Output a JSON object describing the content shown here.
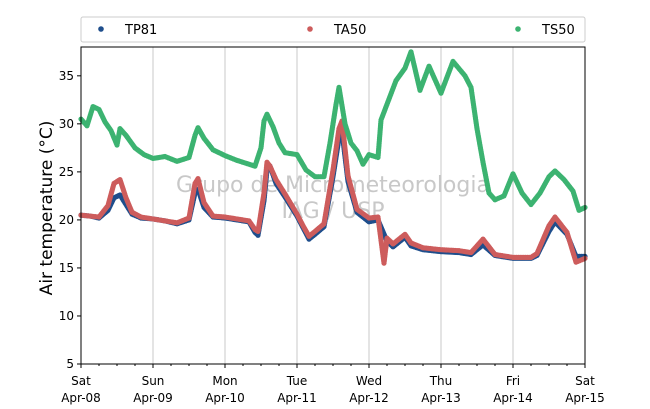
{
  "chart_data": {
    "type": "scatter",
    "ylabel": "Air temperature (°C)",
    "xlim": [
      "2017-04-08T00:00",
      "2017-04-15T00:00"
    ],
    "ylim": [
      5,
      38
    ],
    "yticks": [
      5,
      10,
      15,
      20,
      25,
      30,
      35
    ],
    "xticks": [
      {
        "day": "Sat",
        "date": "Apr-08"
      },
      {
        "day": "Sun",
        "date": "Apr-09"
      },
      {
        "day": "Mon",
        "date": "Apr-10"
      },
      {
        "day": "Tue",
        "date": "Apr-11"
      },
      {
        "day": "Wed",
        "date": "Apr-12"
      },
      {
        "day": "Thu",
        "date": "Apr-13"
      },
      {
        "day": "Fri",
        "date": "Apr-14"
      },
      {
        "day": "Sat",
        "date": "Apr-15"
      }
    ],
    "grid": "vertical",
    "legend": "top",
    "watermark": [
      "Grupo de Micrometeorologia",
      "IAG / USP"
    ],
    "series": [
      {
        "name": "TP81",
        "color": "#1f4e8c",
        "points": [
          [
            "2017-04-08T00:00",
            20.5
          ],
          [
            "2017-04-08T03:00",
            20.4
          ],
          [
            "2017-04-08T06:00",
            20.2
          ],
          [
            "2017-04-08T09:00",
            21.0
          ],
          [
            "2017-04-08T11:00",
            22.3
          ],
          [
            "2017-04-08T13:00",
            22.6
          ],
          [
            "2017-04-08T15:00",
            21.6
          ],
          [
            "2017-04-08T17:00",
            20.6
          ],
          [
            "2017-04-08T20:00",
            20.2
          ],
          [
            "2017-04-09T00:00",
            20.1
          ],
          [
            "2017-04-09T04:00",
            19.9
          ],
          [
            "2017-04-09T08:00",
            19.6
          ],
          [
            "2017-04-09T12:00",
            20.0
          ],
          [
            "2017-04-09T14:00",
            22.8
          ],
          [
            "2017-04-09T15:00",
            23.2
          ],
          [
            "2017-04-09T17:00",
            21.3
          ],
          [
            "2017-04-09T20:00",
            20.3
          ],
          [
            "2017-04-10T00:00",
            20.2
          ],
          [
            "2017-04-10T04:00",
            20.0
          ],
          [
            "2017-04-10T08:00",
            19.8
          ],
          [
            "2017-04-10T10:00",
            18.7
          ],
          [
            "2017-04-10T11:00",
            18.4
          ],
          [
            "2017-04-10T13:00",
            22.0
          ],
          [
            "2017-04-10T14:00",
            25.2
          ],
          [
            "2017-04-10T15:00",
            25.6
          ],
          [
            "2017-04-10T17:00",
            23.8
          ],
          [
            "2017-04-10T20:00",
            22.4
          ],
          [
            "2017-04-11T00:00",
            20.4
          ],
          [
            "2017-04-11T02:00",
            19.2
          ],
          [
            "2017-04-11T04:00",
            18.0
          ],
          [
            "2017-04-11T06:00",
            18.5
          ],
          [
            "2017-04-11T09:00",
            19.3
          ],
          [
            "2017-04-11T12:00",
            24.5
          ],
          [
            "2017-04-11T14:00",
            28.5
          ],
          [
            "2017-04-11T15:00",
            29.2
          ],
          [
            "2017-04-11T17:00",
            24.0
          ],
          [
            "2017-04-11T20:00",
            20.8
          ],
          [
            "2017-04-12T00:00",
            19.8
          ],
          [
            "2017-04-12T03:00",
            20.0
          ],
          [
            "2017-04-12T06:00",
            17.8
          ],
          [
            "2017-04-12T08:00",
            17.2
          ],
          [
            "2017-04-12T12:00",
            18.2
          ],
          [
            "2017-04-12T14:00",
            17.3
          ],
          [
            "2017-04-12T18:00",
            16.9
          ],
          [
            "2017-04-13T00:00",
            16.7
          ],
          [
            "2017-04-13T06:00",
            16.6
          ],
          [
            "2017-04-13T10:00",
            16.4
          ],
          [
            "2017-04-13T14:00",
            17.4
          ],
          [
            "2017-04-13T18:00",
            16.3
          ],
          [
            "2017-04-14T00:00",
            16.0
          ],
          [
            "2017-04-14T06:00",
            16.0
          ],
          [
            "2017-04-14T08:00",
            16.3
          ],
          [
            "2017-04-14T12:00",
            18.8
          ],
          [
            "2017-04-14T14:00",
            19.8
          ],
          [
            "2017-04-14T18:00",
            18.5
          ],
          [
            "2017-04-14T21:00",
            16.2
          ],
          [
            "2017-04-15T00:00",
            16.2
          ]
        ]
      },
      {
        "name": "TA50",
        "color": "#cd5c5c",
        "points": [
          [
            "2017-04-08T00:00",
            20.5
          ],
          [
            "2017-04-08T03:00",
            20.4
          ],
          [
            "2017-04-08T06:00",
            20.3
          ],
          [
            "2017-04-08T09:00",
            21.5
          ],
          [
            "2017-04-08T11:00",
            23.8
          ],
          [
            "2017-04-08T13:00",
            24.2
          ],
          [
            "2017-04-08T15:00",
            22.3
          ],
          [
            "2017-04-08T17:00",
            20.8
          ],
          [
            "2017-04-08T20:00",
            20.3
          ],
          [
            "2017-04-09T00:00",
            20.1
          ],
          [
            "2017-04-09T04:00",
            19.9
          ],
          [
            "2017-04-09T08:00",
            19.7
          ],
          [
            "2017-04-09T12:00",
            20.2
          ],
          [
            "2017-04-09T14:00",
            23.8
          ],
          [
            "2017-04-09T15:00",
            24.3
          ],
          [
            "2017-04-09T17:00",
            21.8
          ],
          [
            "2017-04-09T20:00",
            20.4
          ],
          [
            "2017-04-10T00:00",
            20.3
          ],
          [
            "2017-04-10T04:00",
            20.1
          ],
          [
            "2017-04-10T08:00",
            19.9
          ],
          [
            "2017-04-10T10:00",
            19.0
          ],
          [
            "2017-04-10T11:00",
            18.8
          ],
          [
            "2017-04-10T13:00",
            22.8
          ],
          [
            "2017-04-10T14:00",
            26.0
          ],
          [
            "2017-04-10T15:00",
            25.6
          ],
          [
            "2017-04-10T17:00",
            24.2
          ],
          [
            "2017-04-10T20:00",
            22.7
          ],
          [
            "2017-04-11T00:00",
            20.6
          ],
          [
            "2017-04-11T02:00",
            19.4
          ],
          [
            "2017-04-11T04:00",
            18.3
          ],
          [
            "2017-04-11T06:00",
            18.8
          ],
          [
            "2017-04-11T09:00",
            19.6
          ],
          [
            "2017-04-11T12:00",
            25.2
          ],
          [
            "2017-04-11T14:00",
            29.5
          ],
          [
            "2017-04-11T15:00",
            30.3
          ],
          [
            "2017-04-11T17:00",
            24.6
          ],
          [
            "2017-04-11T20:00",
            21.1
          ],
          [
            "2017-04-12T00:00",
            20.2
          ],
          [
            "2017-04-12T03:00",
            20.3
          ],
          [
            "2017-04-12T05:00",
            15.5
          ],
          [
            "2017-04-12T06:00",
            18.1
          ],
          [
            "2017-04-12T08:00",
            17.5
          ],
          [
            "2017-04-12T12:00",
            18.5
          ],
          [
            "2017-04-12T14:00",
            17.6
          ],
          [
            "2017-04-12T18:00",
            17.1
          ],
          [
            "2017-04-13T00:00",
            16.9
          ],
          [
            "2017-04-13T06:00",
            16.8
          ],
          [
            "2017-04-13T10:00",
            16.6
          ],
          [
            "2017-04-13T14:00",
            18.0
          ],
          [
            "2017-04-13T18:00",
            16.4
          ],
          [
            "2017-04-14T00:00",
            16.1
          ],
          [
            "2017-04-14T06:00",
            16.1
          ],
          [
            "2017-04-14T08:00",
            16.5
          ],
          [
            "2017-04-14T12:00",
            19.4
          ],
          [
            "2017-04-14T14:00",
            20.3
          ],
          [
            "2017-04-14T18:00",
            18.7
          ],
          [
            "2017-04-14T21:00",
            15.6
          ],
          [
            "2017-04-15T00:00",
            16.0
          ]
        ]
      },
      {
        "name": "TS50",
        "color": "#3cb371",
        "points": [
          [
            "2017-04-08T00:00",
            30.5
          ],
          [
            "2017-04-08T02:00",
            29.8
          ],
          [
            "2017-04-08T04:00",
            31.8
          ],
          [
            "2017-04-08T06:00",
            31.5
          ],
          [
            "2017-04-08T08:00",
            30.2
          ],
          [
            "2017-04-08T10:00",
            29.3
          ],
          [
            "2017-04-08T12:00",
            27.8
          ],
          [
            "2017-04-08T13:00",
            29.5
          ],
          [
            "2017-04-08T15:00",
            28.8
          ],
          [
            "2017-04-08T18:00",
            27.5
          ],
          [
            "2017-04-08T21:00",
            26.8
          ],
          [
            "2017-04-09T00:00",
            26.4
          ],
          [
            "2017-04-09T04:00",
            26.6
          ],
          [
            "2017-04-09T08:00",
            26.1
          ],
          [
            "2017-04-09T12:00",
            26.5
          ],
          [
            "2017-04-09T14:00",
            28.8
          ],
          [
            "2017-04-09T15:00",
            29.6
          ],
          [
            "2017-04-09T17:00",
            28.5
          ],
          [
            "2017-04-09T20:00",
            27.3
          ],
          [
            "2017-04-10T00:00",
            26.7
          ],
          [
            "2017-04-10T04:00",
            26.2
          ],
          [
            "2017-04-10T08:00",
            25.8
          ],
          [
            "2017-04-10T10:00",
            25.6
          ],
          [
            "2017-04-10T12:00",
            27.5
          ],
          [
            "2017-04-10T13:00",
            30.3
          ],
          [
            "2017-04-10T14:00",
            31.0
          ],
          [
            "2017-04-10T16:00",
            29.7
          ],
          [
            "2017-04-10T18:00",
            28.0
          ],
          [
            "2017-04-10T20:00",
            27.0
          ],
          [
            "2017-04-11T00:00",
            26.8
          ],
          [
            "2017-04-11T03:00",
            25.2
          ],
          [
            "2017-04-11T06:00",
            24.5
          ],
          [
            "2017-04-11T09:00",
            24.5
          ],
          [
            "2017-04-11T11:00",
            28.0
          ],
          [
            "2017-04-11T13:00",
            32.0
          ],
          [
            "2017-04-11T14:00",
            33.8
          ],
          [
            "2017-04-11T16:00",
            30.0
          ],
          [
            "2017-04-11T18:00",
            28.0
          ],
          [
            "2017-04-11T20:00",
            27.2
          ],
          [
            "2017-04-11T22:00",
            25.8
          ],
          [
            "2017-04-12T00:00",
            26.8
          ],
          [
            "2017-04-12T03:00",
            26.5
          ],
          [
            "2017-04-12T04:00",
            30.4
          ],
          [
            "2017-04-12T09:00",
            34.5
          ],
          [
            "2017-04-12T12:00",
            35.8
          ],
          [
            "2017-04-12T14:00",
            37.5
          ],
          [
            "2017-04-12T17:00",
            33.5
          ],
          [
            "2017-04-12T20:00",
            36.0
          ],
          [
            "2017-04-13T00:00",
            33.2
          ],
          [
            "2017-04-13T04:00",
            36.5
          ],
          [
            "2017-04-13T08:00",
            35.0
          ],
          [
            "2017-04-13T10:00",
            33.8
          ],
          [
            "2017-04-13T12:00",
            29.5
          ],
          [
            "2017-04-13T14:00",
            26.0
          ],
          [
            "2017-04-13T16:00",
            22.8
          ],
          [
            "2017-04-13T18:00",
            22.1
          ],
          [
            "2017-04-13T21:00",
            22.5
          ],
          [
            "2017-04-14T00:00",
            24.8
          ],
          [
            "2017-04-14T03:00",
            22.8
          ],
          [
            "2017-04-14T06:00",
            21.6
          ],
          [
            "2017-04-14T09:00",
            22.8
          ],
          [
            "2017-04-14T12:00",
            24.5
          ],
          [
            "2017-04-14T14:00",
            25.1
          ],
          [
            "2017-04-14T17:00",
            24.2
          ],
          [
            "2017-04-14T20:00",
            23.0
          ],
          [
            "2017-04-14T22:00",
            21.0
          ],
          [
            "2017-04-15T00:00",
            21.3
          ]
        ]
      }
    ]
  }
}
